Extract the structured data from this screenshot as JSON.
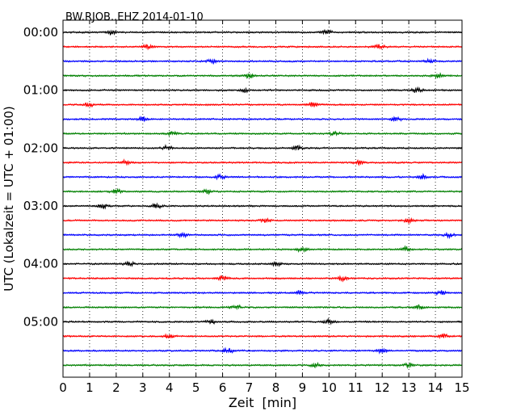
{
  "chart_data": {
    "type": "line",
    "title": "BW.RJOB..EHZ 2014-01-10",
    "xlabel": "Zeit  [min]",
    "ylabel": "UTC (Lokalzeit = UTC + 01:00)",
    "xlim": [
      0,
      15
    ],
    "x_ticks": [
      "0",
      "1",
      "2",
      "3",
      "4",
      "5",
      "6",
      "7",
      "8",
      "9",
      "10",
      "11",
      "12",
      "13",
      "14",
      "15"
    ],
    "y_ticks": [
      "00:00",
      "01:00",
      "02:00",
      "03:00",
      "04:00",
      "05:00"
    ],
    "grid": "vertical dotted at each minute",
    "trace_count": 24,
    "trace_interval_min": 15,
    "trace_colors": [
      "#000000",
      "#ff0000",
      "#0000ff",
      "#008000"
    ],
    "series": [
      {
        "start": "00:00",
        "color": "#000000",
        "bursts_min": [
          1.8,
          9.9
        ]
      },
      {
        "start": "00:15",
        "color": "#ff0000",
        "bursts_min": [
          3.2,
          11.9
        ]
      },
      {
        "start": "00:30",
        "color": "#0000ff",
        "bursts_min": [
          5.6,
          13.8
        ]
      },
      {
        "start": "00:45",
        "color": "#008000",
        "bursts_min": [
          7.0,
          14.1
        ]
      },
      {
        "start": "01:00",
        "color": "#000000",
        "bursts_min": [
          6.8,
          13.3
        ]
      },
      {
        "start": "01:15",
        "color": "#ff0000",
        "bursts_min": [
          1.0,
          9.4
        ]
      },
      {
        "start": "01:30",
        "color": "#0000ff",
        "bursts_min": [
          3.0,
          12.5
        ]
      },
      {
        "start": "01:45",
        "color": "#008000",
        "bursts_min": [
          4.1,
          10.2
        ]
      },
      {
        "start": "02:00",
        "color": "#000000",
        "bursts_min": [
          3.9,
          8.8
        ]
      },
      {
        "start": "02:15",
        "color": "#ff0000",
        "bursts_min": [
          2.4,
          11.1
        ]
      },
      {
        "start": "02:30",
        "color": "#0000ff",
        "bursts_min": [
          5.9,
          13.5
        ]
      },
      {
        "start": "02:45",
        "color": "#008000",
        "bursts_min": [
          2.0,
          5.4
        ]
      },
      {
        "start": "03:00",
        "color": "#000000",
        "bursts_min": [
          1.5,
          3.5
        ]
      },
      {
        "start": "03:15",
        "color": "#ff0000",
        "bursts_min": [
          7.6,
          13.0
        ]
      },
      {
        "start": "03:30",
        "color": "#0000ff",
        "bursts_min": [
          4.5,
          14.5
        ]
      },
      {
        "start": "03:45",
        "color": "#008000",
        "bursts_min": [
          9.0,
          12.9
        ]
      },
      {
        "start": "04:00",
        "color": "#000000",
        "bursts_min": [
          2.5,
          8.0
        ]
      },
      {
        "start": "04:15",
        "color": "#ff0000",
        "bursts_min": [
          6.0,
          10.5
        ]
      },
      {
        "start": "04:30",
        "color": "#0000ff",
        "bursts_min": [
          8.9,
          14.2
        ]
      },
      {
        "start": "04:45",
        "color": "#008000",
        "bursts_min": [
          6.5,
          13.4
        ]
      },
      {
        "start": "05:00",
        "color": "#000000",
        "bursts_min": [
          5.6,
          10.0
        ]
      },
      {
        "start": "05:15",
        "color": "#ff0000",
        "bursts_min": [
          4.0,
          14.3
        ]
      },
      {
        "start": "05:30",
        "color": "#0000ff",
        "bursts_min": [
          6.2,
          12.0
        ]
      },
      {
        "start": "05:45",
        "color": "#008000",
        "bursts_min": [
          9.5,
          13.0
        ]
      }
    ]
  }
}
